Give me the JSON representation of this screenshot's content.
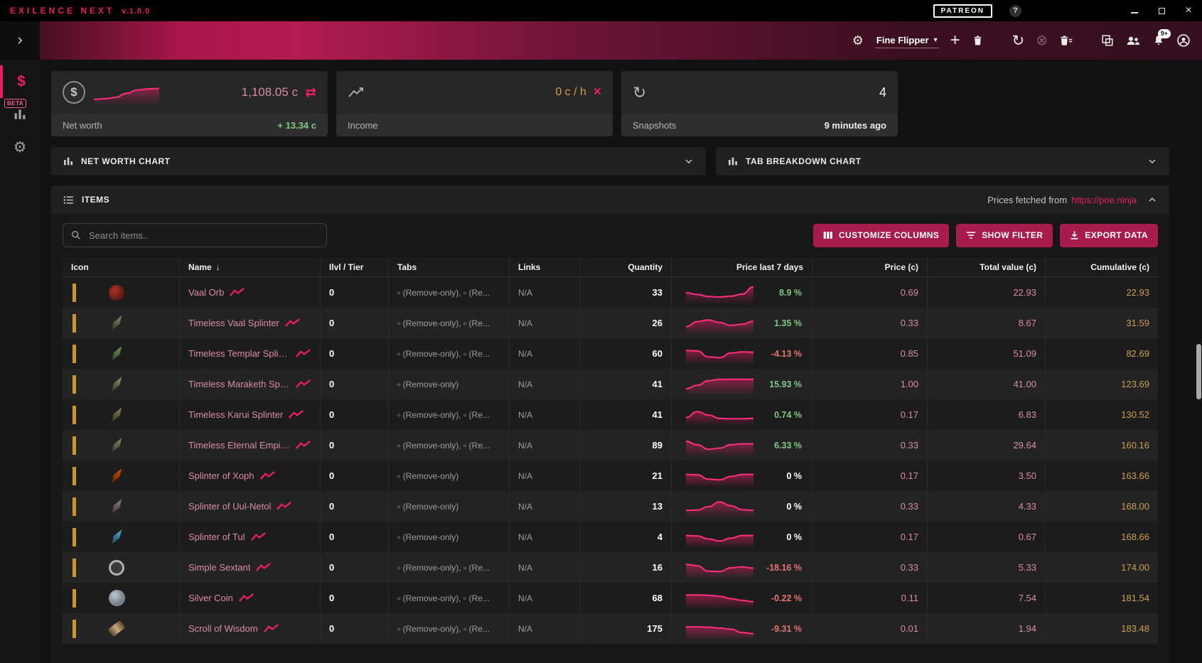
{
  "colors": {
    "accent": "#e91e63",
    "accent_bright": "#ff2e7d",
    "positive": "#81c784",
    "negative": "#e57373",
    "neutral": "#ffffff",
    "rose": "#d98ca6",
    "amber": "#cf9e55",
    "indicator": "#c9952c",
    "button": "#a81b4d"
  },
  "icons": {
    "dollar": "$",
    "gear": "⚙",
    "plus": "+",
    "refresh": "↻",
    "cancel": "⊗",
    "swap": "⇄",
    "caret_down": "▾",
    "sort_desc": "↓",
    "help": "?",
    "close_small": "×",
    "window_close": "×",
    "update": "↻"
  },
  "titlebar": {
    "app_title": "EXILENCE NEXT",
    "version": "v.1.0.0",
    "patreon_label": "PATREON"
  },
  "toolbar": {
    "profile_name": "Fine Flipper",
    "notification_badge": "9+"
  },
  "sidebar": {
    "beta_badge": "BETA"
  },
  "cards": {
    "networth": {
      "label": "Net worth",
      "value": "1,108.05 c",
      "change": "+ 13.34 c",
      "spark": [
        0.15,
        0.18,
        0.25,
        0.45,
        0.62,
        0.68,
        0.7
      ]
    },
    "income": {
      "label": "Income",
      "value": "0 c / h"
    },
    "snapshots": {
      "label": "Snapshots",
      "value": "4",
      "last_taken": "9 minutes ago"
    }
  },
  "panels": {
    "networth_chart": {
      "title": "NET WORTH CHART"
    },
    "tab_breakdown": {
      "title": "TAB BREAKDOWN CHART"
    },
    "items": {
      "title": "ITEMS",
      "prices_prefix": "Prices fetched from",
      "prices_link": "https://poe.ninja"
    }
  },
  "items_toolbar": {
    "search_placeholder": "Search items..",
    "customize_columns": "CUSTOMIZE COLUMNS",
    "show_filter": "SHOW FILTER",
    "export_data": "EXPORT DATA"
  },
  "table": {
    "columns": [
      "Icon",
      "Name",
      "Ilvl / Tier",
      "Tabs",
      "Links",
      "Quantity",
      "Price last 7 days",
      "Price (c)",
      "Total value (c)",
      "Cumulative (c)"
    ],
    "rows": [
      {
        "name": "Vaal Orb",
        "ilvl": "0",
        "tabs": "▫ (Remove-only), ▫ (Re...",
        "links": "N/A",
        "quantity": "33",
        "change": "8.9 %",
        "price": "0.69",
        "total": "22.93",
        "cumulative": "22.93",
        "icon": {
          "kind": "orb",
          "c1": "#a93226",
          "c2": "#3c0f08"
        },
        "spark": [
          0.5,
          0.4,
          0.28,
          0.25,
          0.3,
          0.42,
          0.85
        ]
      },
      {
        "name": "Timeless Vaal Splinter",
        "ilvl": "0",
        "tabs": "▫ (Remove-only), ▫ (Re...",
        "links": "N/A",
        "quantity": "26",
        "change": "1.35 %",
        "price": "0.33",
        "total": "8.67",
        "cumulative": "31.59",
        "icon": {
          "kind": "shard",
          "c1": "#8c8f6a",
          "c2": "#2f3020"
        },
        "spark": [
          0.3,
          0.6,
          0.7,
          0.55,
          0.38,
          0.45,
          0.62
        ]
      },
      {
        "name": "Timeless Templar Splint...",
        "ilvl": "0",
        "tabs": "▫ (Remove-only), ▫ (Re...",
        "links": "N/A",
        "quantity": "60",
        "change": "-4.13 %",
        "price": "0.85",
        "total": "51.09",
        "cumulative": "82.69",
        "icon": {
          "kind": "shard",
          "c1": "#7f9c5e",
          "c2": "#28331c"
        },
        "spark": [
          0.7,
          0.68,
          0.32,
          0.28,
          0.55,
          0.62,
          0.6
        ]
      },
      {
        "name": "Timeless Maraketh Spli...",
        "ilvl": "0",
        "tabs": "▫ (Remove-only)",
        "links": "N/A",
        "quantity": "41",
        "change": "15.93 %",
        "price": "1.00",
        "total": "41.00",
        "cumulative": "123.69",
        "icon": {
          "kind": "shard",
          "c1": "#8aa06e",
          "c2": "#2c3220"
        },
        "spark": [
          0.25,
          0.45,
          0.72,
          0.8,
          0.8,
          0.8,
          0.8
        ]
      },
      {
        "name": "Timeless Karui Splinter",
        "ilvl": "0",
        "tabs": "▫ (Remove-only), ▫ (Re...",
        "links": "N/A",
        "quantity": "41",
        "change": "0.74 %",
        "price": "0.17",
        "total": "6.83",
        "cumulative": "130.52",
        "icon": {
          "kind": "shard",
          "c1": "#96865a",
          "c2": "#302a18"
        },
        "spark": [
          0.35,
          0.7,
          0.5,
          0.3,
          0.28,
          0.28,
          0.3
        ]
      },
      {
        "name": "Timeless Eternal Empire...",
        "ilvl": "0",
        "tabs": "▫ (Remove-only), ▫ (Re...",
        "links": "N/A",
        "quantity": "89",
        "change": "6.33 %",
        "price": "0.33",
        "total": "29.64",
        "cumulative": "160.16",
        "icon": {
          "kind": "shard",
          "c1": "#8d9468",
          "c2": "#2e3122"
        },
        "spark": [
          0.75,
          0.55,
          0.28,
          0.35,
          0.55,
          0.6,
          0.6
        ]
      },
      {
        "name": "Splinter of Xoph",
        "ilvl": "0",
        "tabs": "▫ (Remove-only)",
        "links": "N/A",
        "quantity": "21",
        "change": "0 %",
        "price": "0.17",
        "total": "3.50",
        "cumulative": "163.66",
        "icon": {
          "kind": "shard",
          "c1": "#d35400",
          "c2": "#5a1e05"
        },
        "spark": [
          0.6,
          0.58,
          0.32,
          0.28,
          0.48,
          0.6,
          0.6
        ]
      },
      {
        "name": "Splinter of Uul-Netol",
        "ilvl": "0",
        "tabs": "▫ (Remove-only)",
        "links": "N/A",
        "quantity": "13",
        "change": "0 %",
        "price": "0.33",
        "total": "4.33",
        "cumulative": "168.00",
        "icon": {
          "kind": "shard",
          "c1": "#9b8294",
          "c2": "#3a2b35"
        },
        "spark": [
          0.28,
          0.3,
          0.5,
          0.78,
          0.55,
          0.32,
          0.28
        ]
      },
      {
        "name": "Splinter of Tul",
        "ilvl": "0",
        "tabs": "▫ (Remove-only)",
        "links": "N/A",
        "quantity": "4",
        "change": "0 %",
        "price": "0.17",
        "total": "0.67",
        "cumulative": "168.66",
        "icon": {
          "kind": "shard",
          "c1": "#5dade2",
          "c2": "#1b3a52"
        },
        "spark": [
          0.6,
          0.58,
          0.4,
          0.28,
          0.45,
          0.6,
          0.6
        ]
      },
      {
        "name": "Simple Sextant",
        "ilvl": "0",
        "tabs": "▫ (Remove-only), ▫ (Re...",
        "links": "N/A",
        "quantity": "16",
        "change": "-18.16 %",
        "price": "0.33",
        "total": "5.33",
        "cumulative": "174.00",
        "icon": {
          "kind": "ring",
          "c1": "#b0b0b0",
          "c2": "#3a3a3a"
        },
        "spark": [
          0.7,
          0.62,
          0.3,
          0.28,
          0.5,
          0.55,
          0.48
        ]
      },
      {
        "name": "Silver Coin",
        "ilvl": "0",
        "tabs": "▫ (Remove-only), ▫ (Re...",
        "links": "N/A",
        "quantity": "68",
        "change": "-0.22 %",
        "price": "0.11",
        "total": "7.54",
        "cumulative": "181.54",
        "icon": {
          "kind": "coin",
          "c1": "#c0c8d0",
          "c2": "#4e5a66"
        },
        "spark": [
          0.7,
          0.7,
          0.68,
          0.62,
          0.48,
          0.38,
          0.3
        ]
      },
      {
        "name": "Scroll of Wisdom",
        "ilvl": "0",
        "tabs": "▫ (Remove-only), ▫ (Re...",
        "links": "N/A",
        "quantity": "175",
        "change": "-9.31 %",
        "price": "0.01",
        "total": "1.94",
        "cumulative": "183.48",
        "icon": {
          "kind": "scroll",
          "c1": "#c8a878",
          "c2": "#5a4630"
        },
        "spark": [
          0.62,
          0.62,
          0.6,
          0.55,
          0.48,
          0.28,
          0.22
        ]
      }
    ]
  }
}
